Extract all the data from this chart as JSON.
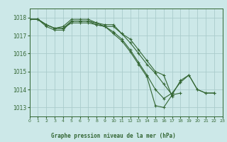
{
  "title": "Graphe pression niveau de la mer (hPa)",
  "bg_color": "#cce8e8",
  "plot_bg_color": "#cce8e8",
  "grid_color": "#aacccc",
  "line_color": "#336633",
  "xlim": [
    0,
    23
  ],
  "ylim": [
    1012.5,
    1018.5
  ],
  "yticks": [
    1013,
    1014,
    1015,
    1016,
    1017,
    1018
  ],
  "xticks": [
    0,
    1,
    2,
    3,
    4,
    5,
    6,
    7,
    8,
    9,
    10,
    11,
    12,
    13,
    14,
    15,
    16,
    17,
    18,
    19,
    20,
    21,
    22,
    23
  ],
  "series": [
    [
      1017.9,
      1017.9,
      1017.6,
      1017.4,
      1017.4,
      1017.7,
      1017.7,
      1017.7,
      1017.6,
      1017.5,
      1017.2,
      1016.8,
      1016.2,
      1015.5,
      1014.8,
      1014.0,
      1013.5,
      1013.8,
      1014.4,
      1014.8,
      1014.0,
      1013.8,
      1013.8,
      null
    ],
    [
      1017.9,
      1017.9,
      1017.5,
      1017.3,
      1017.3,
      1017.8,
      1017.8,
      1017.8,
      1017.6,
      1017.5,
      1017.1,
      1016.7,
      1016.1,
      1015.4,
      1014.7,
      1013.1,
      1013.0,
      1013.7,
      1014.5,
      1014.8,
      1014.0,
      1013.8,
      1013.8,
      null
    ],
    [
      1017.9,
      1017.9,
      1017.6,
      1017.4,
      1017.4,
      1017.8,
      1017.8,
      1017.8,
      1017.7,
      1017.5,
      1017.5,
      1017.1,
      1016.6,
      1016.0,
      1015.4,
      1014.9,
      1014.3,
      1013.7,
      1013.8,
      null,
      null,
      null,
      null,
      null
    ],
    [
      1017.9,
      1017.9,
      1017.6,
      1017.4,
      1017.5,
      1017.9,
      1017.9,
      1017.9,
      1017.7,
      1017.6,
      1017.6,
      1017.1,
      1016.8,
      1016.2,
      1015.6,
      1015.0,
      1014.8,
      1013.6,
      null,
      null,
      null,
      null,
      null,
      null
    ]
  ]
}
